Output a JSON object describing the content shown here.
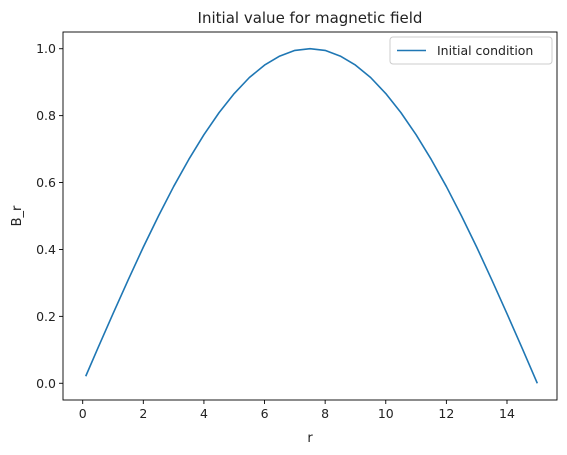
{
  "chart_data": {
    "type": "line",
    "title": "Initial value for magnetic field",
    "xlabel": "r",
    "ylabel": "B_r",
    "xlim": [
      -0.65,
      15.65
    ],
    "ylim": [
      -0.05,
      1.05
    ],
    "xticks": [
      0,
      2,
      4,
      6,
      8,
      10,
      12,
      14
    ],
    "yticks": [
      0.0,
      0.2,
      0.4,
      0.6,
      0.8,
      1.0
    ],
    "xtick_labels": [
      "0",
      "2",
      "4",
      "6",
      "8",
      "10",
      "12",
      "14"
    ],
    "ytick_labels": [
      "0.0",
      "0.2",
      "0.4",
      "0.6",
      "0.8",
      "1.0"
    ],
    "grid": false,
    "legend_position": "top-right",
    "series": [
      {
        "name": "Initial condition",
        "color": "#1f77b4",
        "x": [
          0.1,
          0.5,
          1.0,
          1.5,
          2.0,
          2.5,
          3.0,
          3.5,
          4.0,
          4.5,
          5.0,
          5.5,
          6.0,
          6.5,
          7.0,
          7.5,
          8.0,
          8.5,
          9.0,
          9.5,
          10.0,
          10.5,
          11.0,
          11.5,
          12.0,
          12.5,
          13.0,
          13.5,
          14.0,
          14.5,
          15.0
        ],
        "y": [
          0.021,
          0.105,
          0.208,
          0.309,
          0.407,
          0.5,
          0.588,
          0.669,
          0.743,
          0.809,
          0.866,
          0.914,
          0.951,
          0.978,
          0.995,
          1.0,
          0.995,
          0.978,
          0.951,
          0.914,
          0.866,
          0.809,
          0.743,
          0.669,
          0.588,
          0.5,
          0.407,
          0.309,
          0.208,
          0.105,
          0.0
        ]
      }
    ]
  }
}
